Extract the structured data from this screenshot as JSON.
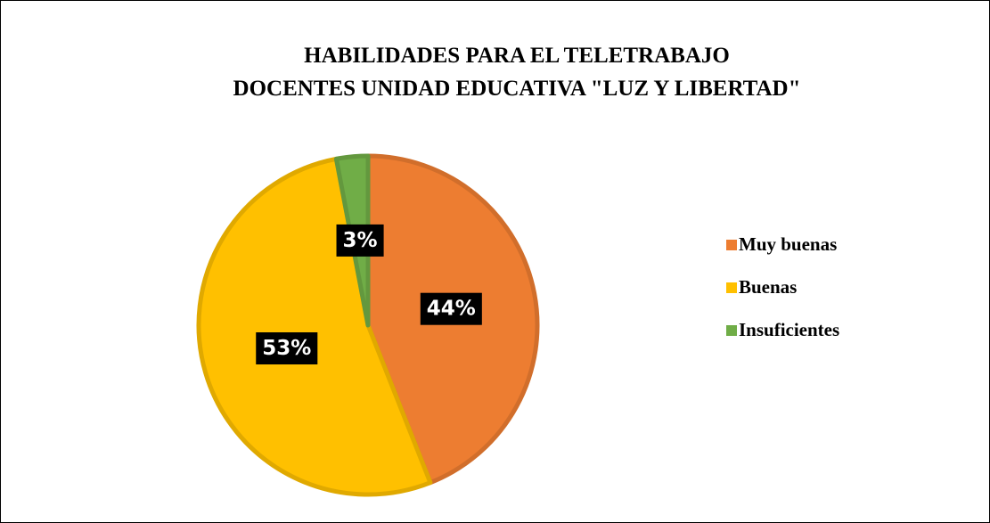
{
  "chart_data": {
    "type": "pie",
    "title": [
      "HABILIDADES PARA EL TELETRABAJO",
      "DOCENTES UNIDAD EDUCATIVA \"LUZ Y LIBERTAD\""
    ],
    "categories": [
      "Muy buenas",
      "Buenas",
      "Insuficientes"
    ],
    "values": [
      44,
      53,
      3
    ],
    "value_labels": [
      "44%",
      "53%",
      "3%"
    ],
    "colors": [
      "#ED7D31",
      "#FFC000",
      "#70AD47"
    ],
    "legend": "right"
  }
}
